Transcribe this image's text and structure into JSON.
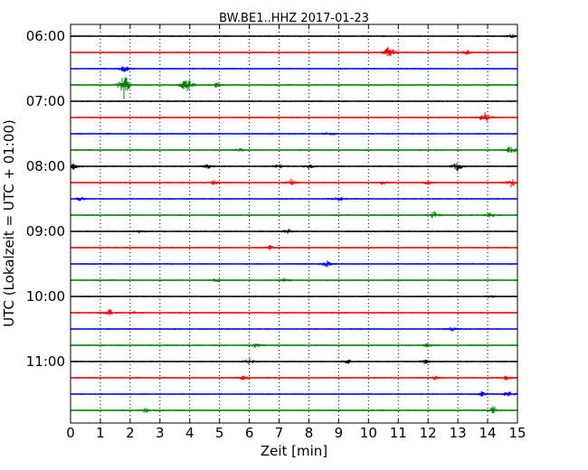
{
  "chart_data": {
    "type": "line",
    "title": "BW.BE1..HHZ 2017-01-23",
    "xlabel": "Zeit  [min]",
    "ylabel": "UTC (Lokalzeit = UTC + 01:00)",
    "xlim": [
      0,
      15
    ],
    "x_ticks": [
      "0",
      "1",
      "2",
      "3",
      "4",
      "5",
      "6",
      "7",
      "8",
      "9",
      "10",
      "11",
      "12",
      "13",
      "14",
      "15"
    ],
    "y_ticks": [
      "06:00",
      "07:00",
      "08:00",
      "09:00",
      "10:00",
      "11:00"
    ],
    "grid": "vertical-dotted",
    "trace_colors": [
      "#000000",
      "#ff0000",
      "#0000ff",
      "#008000"
    ],
    "series": [
      {
        "start": "06:00",
        "events": [
          [
            14.8,
            0.3
          ]
        ]
      },
      {
        "start": "06:15",
        "events": [
          [
            10.7,
            0.9
          ],
          [
            13.3,
            0.3
          ]
        ]
      },
      {
        "start": "06:30",
        "events": [
          [
            1.8,
            0.5
          ]
        ]
      },
      {
        "start": "06:45",
        "events": [
          [
            1.8,
            1.8
          ],
          [
            3.9,
            1.3
          ],
          [
            4.9,
            0.3
          ]
        ]
      },
      {
        "start": "07:00",
        "events": []
      },
      {
        "start": "07:15",
        "events": [
          [
            13.9,
            0.8
          ]
        ]
      },
      {
        "start": "07:30",
        "events": [
          [
            8.7,
            0.3
          ]
        ]
      },
      {
        "start": "07:45",
        "events": [
          [
            14.8,
            0.6
          ],
          [
            5.7,
            0.2
          ]
        ]
      },
      {
        "start": "08:00",
        "events": [
          [
            0.1,
            0.4
          ],
          [
            4.6,
            0.3
          ],
          [
            7.0,
            0.3
          ],
          [
            8.0,
            0.3
          ],
          [
            13.0,
            0.6
          ]
        ]
      },
      {
        "start": "08:15",
        "events": [
          [
            4.8,
            0.3
          ],
          [
            7.4,
            0.4
          ],
          [
            10.5,
            0.3
          ],
          [
            12.0,
            0.3
          ],
          [
            14.8,
            0.6
          ]
        ]
      },
      {
        "start": "08:30",
        "events": [
          [
            0.3,
            0.3
          ],
          [
            9.0,
            0.3
          ]
        ]
      },
      {
        "start": "08:45",
        "events": [
          [
            12.2,
            0.5
          ],
          [
            14.1,
            0.3
          ]
        ]
      },
      {
        "start": "09:00",
        "events": [
          [
            2.3,
            0.2
          ],
          [
            7.3,
            0.3
          ]
        ]
      },
      {
        "start": "09:15",
        "events": [
          [
            6.7,
            0.3
          ]
        ]
      },
      {
        "start": "09:30",
        "events": [
          [
            8.6,
            0.5
          ]
        ]
      },
      {
        "start": "09:45",
        "events": [
          [
            4.9,
            0.2
          ],
          [
            7.2,
            0.3
          ]
        ]
      },
      {
        "start": "10:00",
        "events": [
          [
            14.1,
            0.2
          ]
        ]
      },
      {
        "start": "10:15",
        "events": [
          [
            1.3,
            0.4
          ],
          [
            2.2,
            0.2
          ]
        ]
      },
      {
        "start": "10:30",
        "events": [
          [
            12.8,
            0.3
          ]
        ]
      },
      {
        "start": "10:45",
        "events": [
          [
            6.2,
            0.3
          ],
          [
            12.0,
            0.3
          ]
        ]
      },
      {
        "start": "11:00",
        "events": [
          [
            6.0,
            0.4
          ],
          [
            9.3,
            0.3
          ],
          [
            11.9,
            0.3
          ]
        ]
      },
      {
        "start": "11:15",
        "events": [
          [
            5.8,
            0.3
          ],
          [
            12.2,
            0.3
          ],
          [
            14.6,
            0.3
          ]
        ]
      },
      {
        "start": "11:30",
        "events": [
          [
            13.8,
            0.3
          ],
          [
            14.7,
            0.4
          ]
        ]
      },
      {
        "start": "11:45",
        "events": [
          [
            2.5,
            0.4
          ],
          [
            14.2,
            0.6
          ]
        ]
      }
    ]
  }
}
